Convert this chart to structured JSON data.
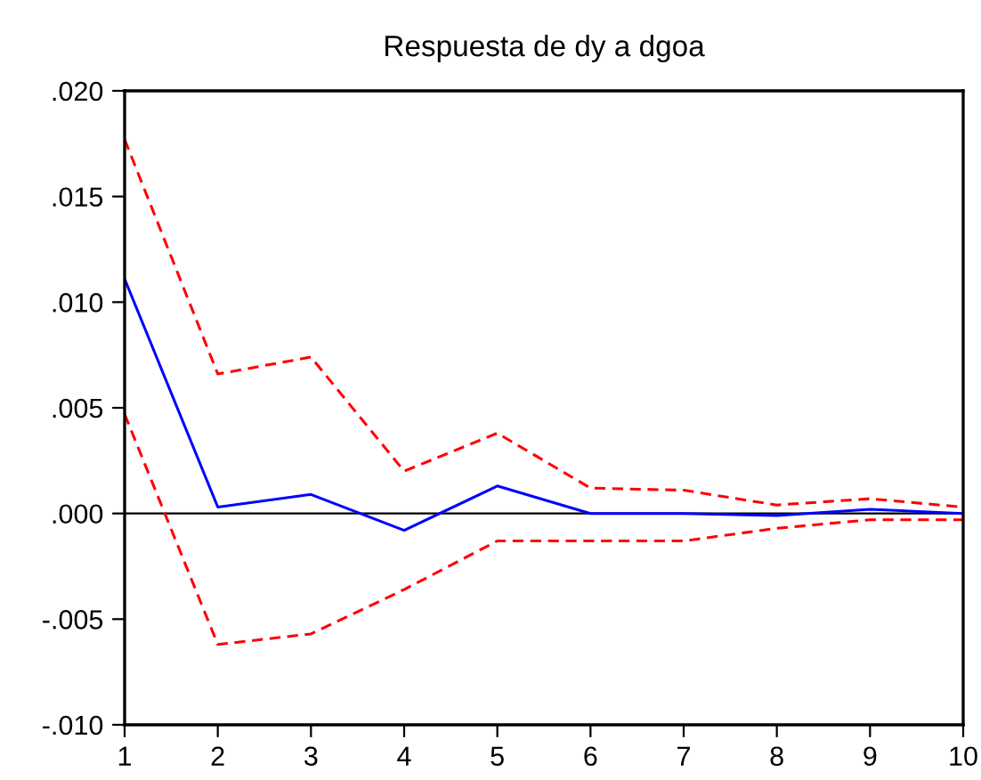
{
  "chart_data": {
    "type": "line",
    "title": "Respuesta de dy a dgoa",
    "x": [
      1,
      2,
      3,
      4,
      5,
      6,
      7,
      8,
      9,
      10
    ],
    "series": [
      {
        "color": "#0000ff",
        "line_style": "solid",
        "values": [
          0.0111,
          0.0003,
          0.0009,
          -0.0008,
          0.0013,
          0.0,
          0.0,
          -0.0001,
          0.0002,
          0.0
        ]
      },
      {
        "color": "#ff0000",
        "line_style": "dashed",
        "values": [
          0.0177,
          0.0066,
          0.0074,
          0.002,
          0.0038,
          0.0012,
          0.0011,
          0.0004,
          0.0007,
          0.0003
        ]
      },
      {
        "color": "#ff0000",
        "line_style": "dashed",
        "values": [
          0.0047,
          -0.0062,
          -0.0057,
          -0.0036,
          -0.0013,
          -0.0013,
          -0.0013,
          -0.0007,
          -0.0003,
          -0.0003
        ]
      }
    ],
    "xlim": [
      1,
      10
    ],
    "xticks": [
      1,
      2,
      3,
      4,
      5,
      6,
      7,
      8,
      9,
      10
    ],
    "ylim": [
      -0.01,
      0.02
    ],
    "yticks": [
      {
        "value": -0.01,
        "label": "-.010"
      },
      {
        "value": -0.005,
        "label": "-.005"
      },
      {
        "value": 0.0,
        "label": ".000"
      },
      {
        "value": 0.005,
        "label": ".005"
      },
      {
        "value": 0.01,
        "label": ".010"
      },
      {
        "value": 0.015,
        "label": ".015"
      },
      {
        "value": 0.02,
        "label": ".020"
      }
    ],
    "ref_lines": [
      {
        "axis": "y",
        "value": 0.0,
        "color": "#000000"
      }
    ],
    "grid": false,
    "legend": false
  }
}
